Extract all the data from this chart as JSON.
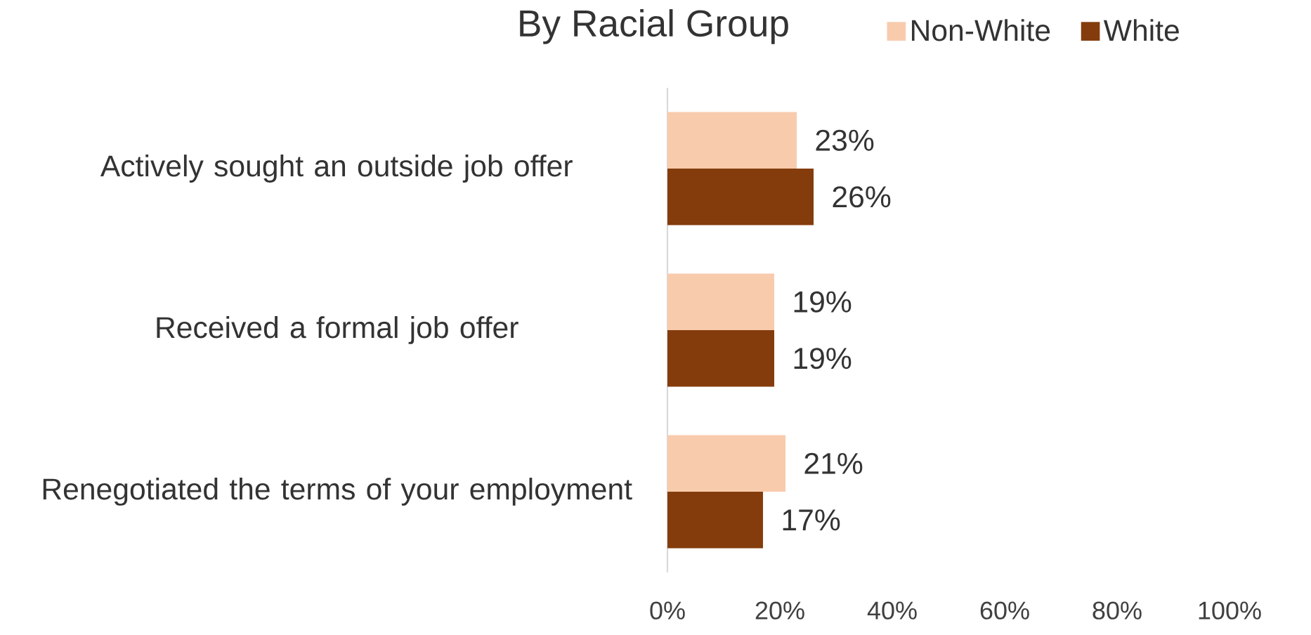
{
  "chart_data": {
    "type": "bar",
    "orientation": "horizontal",
    "title": "By Racial Group",
    "categories": [
      "Actively sought an outside job offer",
      "Received a formal job offer",
      "Renegotiated the terms of your employment"
    ],
    "series": [
      {
        "name": "Non-White",
        "color": "#f8cbad",
        "values": [
          23,
          19,
          21
        ],
        "value_labels": [
          "23%",
          "19%",
          "21%"
        ]
      },
      {
        "name": "White",
        "color": "#843c0c",
        "values": [
          26,
          19,
          17
        ],
        "value_labels": [
          "26%",
          "19%",
          "17%"
        ]
      }
    ],
    "xlim": [
      0,
      100
    ],
    "xticks": [
      {
        "value": 0,
        "label": "0%"
      },
      {
        "value": 20,
        "label": "20%"
      },
      {
        "value": 40,
        "label": "40%"
      },
      {
        "value": 60,
        "label": "60%"
      },
      {
        "value": 80,
        "label": "80%"
      },
      {
        "value": 100,
        "label": "100%"
      }
    ],
    "legend": "top right"
  }
}
